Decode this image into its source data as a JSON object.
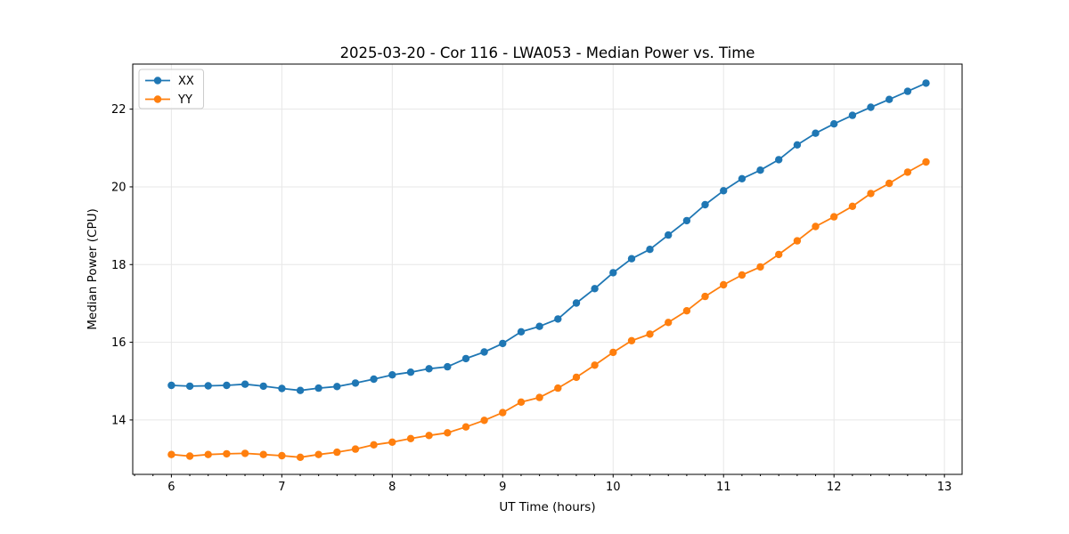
{
  "figure": {
    "title": "2025-03-20 - Cor 116 - LWA053 - Median Power vs. Time"
  },
  "chart_data": {
    "type": "line",
    "title": "2025-03-20 - Cor 116 - LWA053 - Median Power vs. Time",
    "xlabel": "UT Time (hours)",
    "ylabel": "Median Power (CPU)",
    "xlim": [
      5.65,
      13.16
    ],
    "ylim": [
      12.6,
      23.16
    ],
    "x_tick_values": [
      6,
      7,
      8,
      9,
      10,
      11,
      12,
      13
    ],
    "x_tick_labels": [
      "6",
      "7",
      "8",
      "9",
      "10",
      "11",
      "12",
      "13"
    ],
    "x_minor_tick_step": 0.1666667,
    "y_tick_values": [
      14,
      16,
      18,
      20,
      22
    ],
    "y_tick_labels": [
      "14",
      "16",
      "18",
      "20",
      "22"
    ],
    "grid": true,
    "legend_position": "upper left",
    "marker": "circle",
    "x": [
      6.0,
      6.167,
      6.333,
      6.5,
      6.667,
      6.833,
      7.0,
      7.167,
      7.333,
      7.5,
      7.667,
      7.833,
      8.0,
      8.167,
      8.333,
      8.5,
      8.667,
      8.833,
      9.0,
      9.167,
      9.333,
      9.5,
      9.667,
      9.833,
      10.0,
      10.167,
      10.333,
      10.5,
      10.667,
      10.833,
      11.0,
      11.167,
      11.333,
      11.5,
      11.667,
      11.833,
      12.0,
      12.167,
      12.333,
      12.5,
      12.667,
      12.833
    ],
    "series": [
      {
        "name": "XX",
        "color": "#1f77b4",
        "values": [
          14.89,
          14.87,
          14.88,
          14.89,
          14.92,
          14.87,
          14.81,
          14.76,
          14.82,
          14.86,
          14.95,
          15.05,
          15.16,
          15.23,
          15.32,
          15.37,
          15.58,
          15.75,
          15.97,
          16.27,
          16.41,
          16.6,
          17.01,
          17.38,
          17.79,
          18.15,
          18.39,
          18.76,
          19.13,
          19.54,
          19.9,
          20.21,
          20.43,
          20.7,
          21.08,
          21.38,
          21.62,
          21.84,
          22.05,
          22.25,
          22.46,
          22.67
        ]
      },
      {
        "name": "YY",
        "color": "#ff7f0e",
        "values": [
          13.11,
          13.07,
          13.11,
          13.13,
          13.14,
          13.11,
          13.08,
          13.04,
          13.11,
          13.17,
          13.25,
          13.36,
          13.43,
          13.52,
          13.6,
          13.67,
          13.82,
          13.99,
          14.19,
          14.46,
          14.58,
          14.82,
          15.1,
          15.41,
          15.74,
          16.04,
          16.21,
          16.51,
          16.81,
          17.18,
          17.48,
          17.73,
          17.94,
          18.26,
          18.61,
          18.98,
          19.23,
          19.5,
          19.83,
          20.09,
          20.38,
          20.64
        ]
      }
    ]
  }
}
